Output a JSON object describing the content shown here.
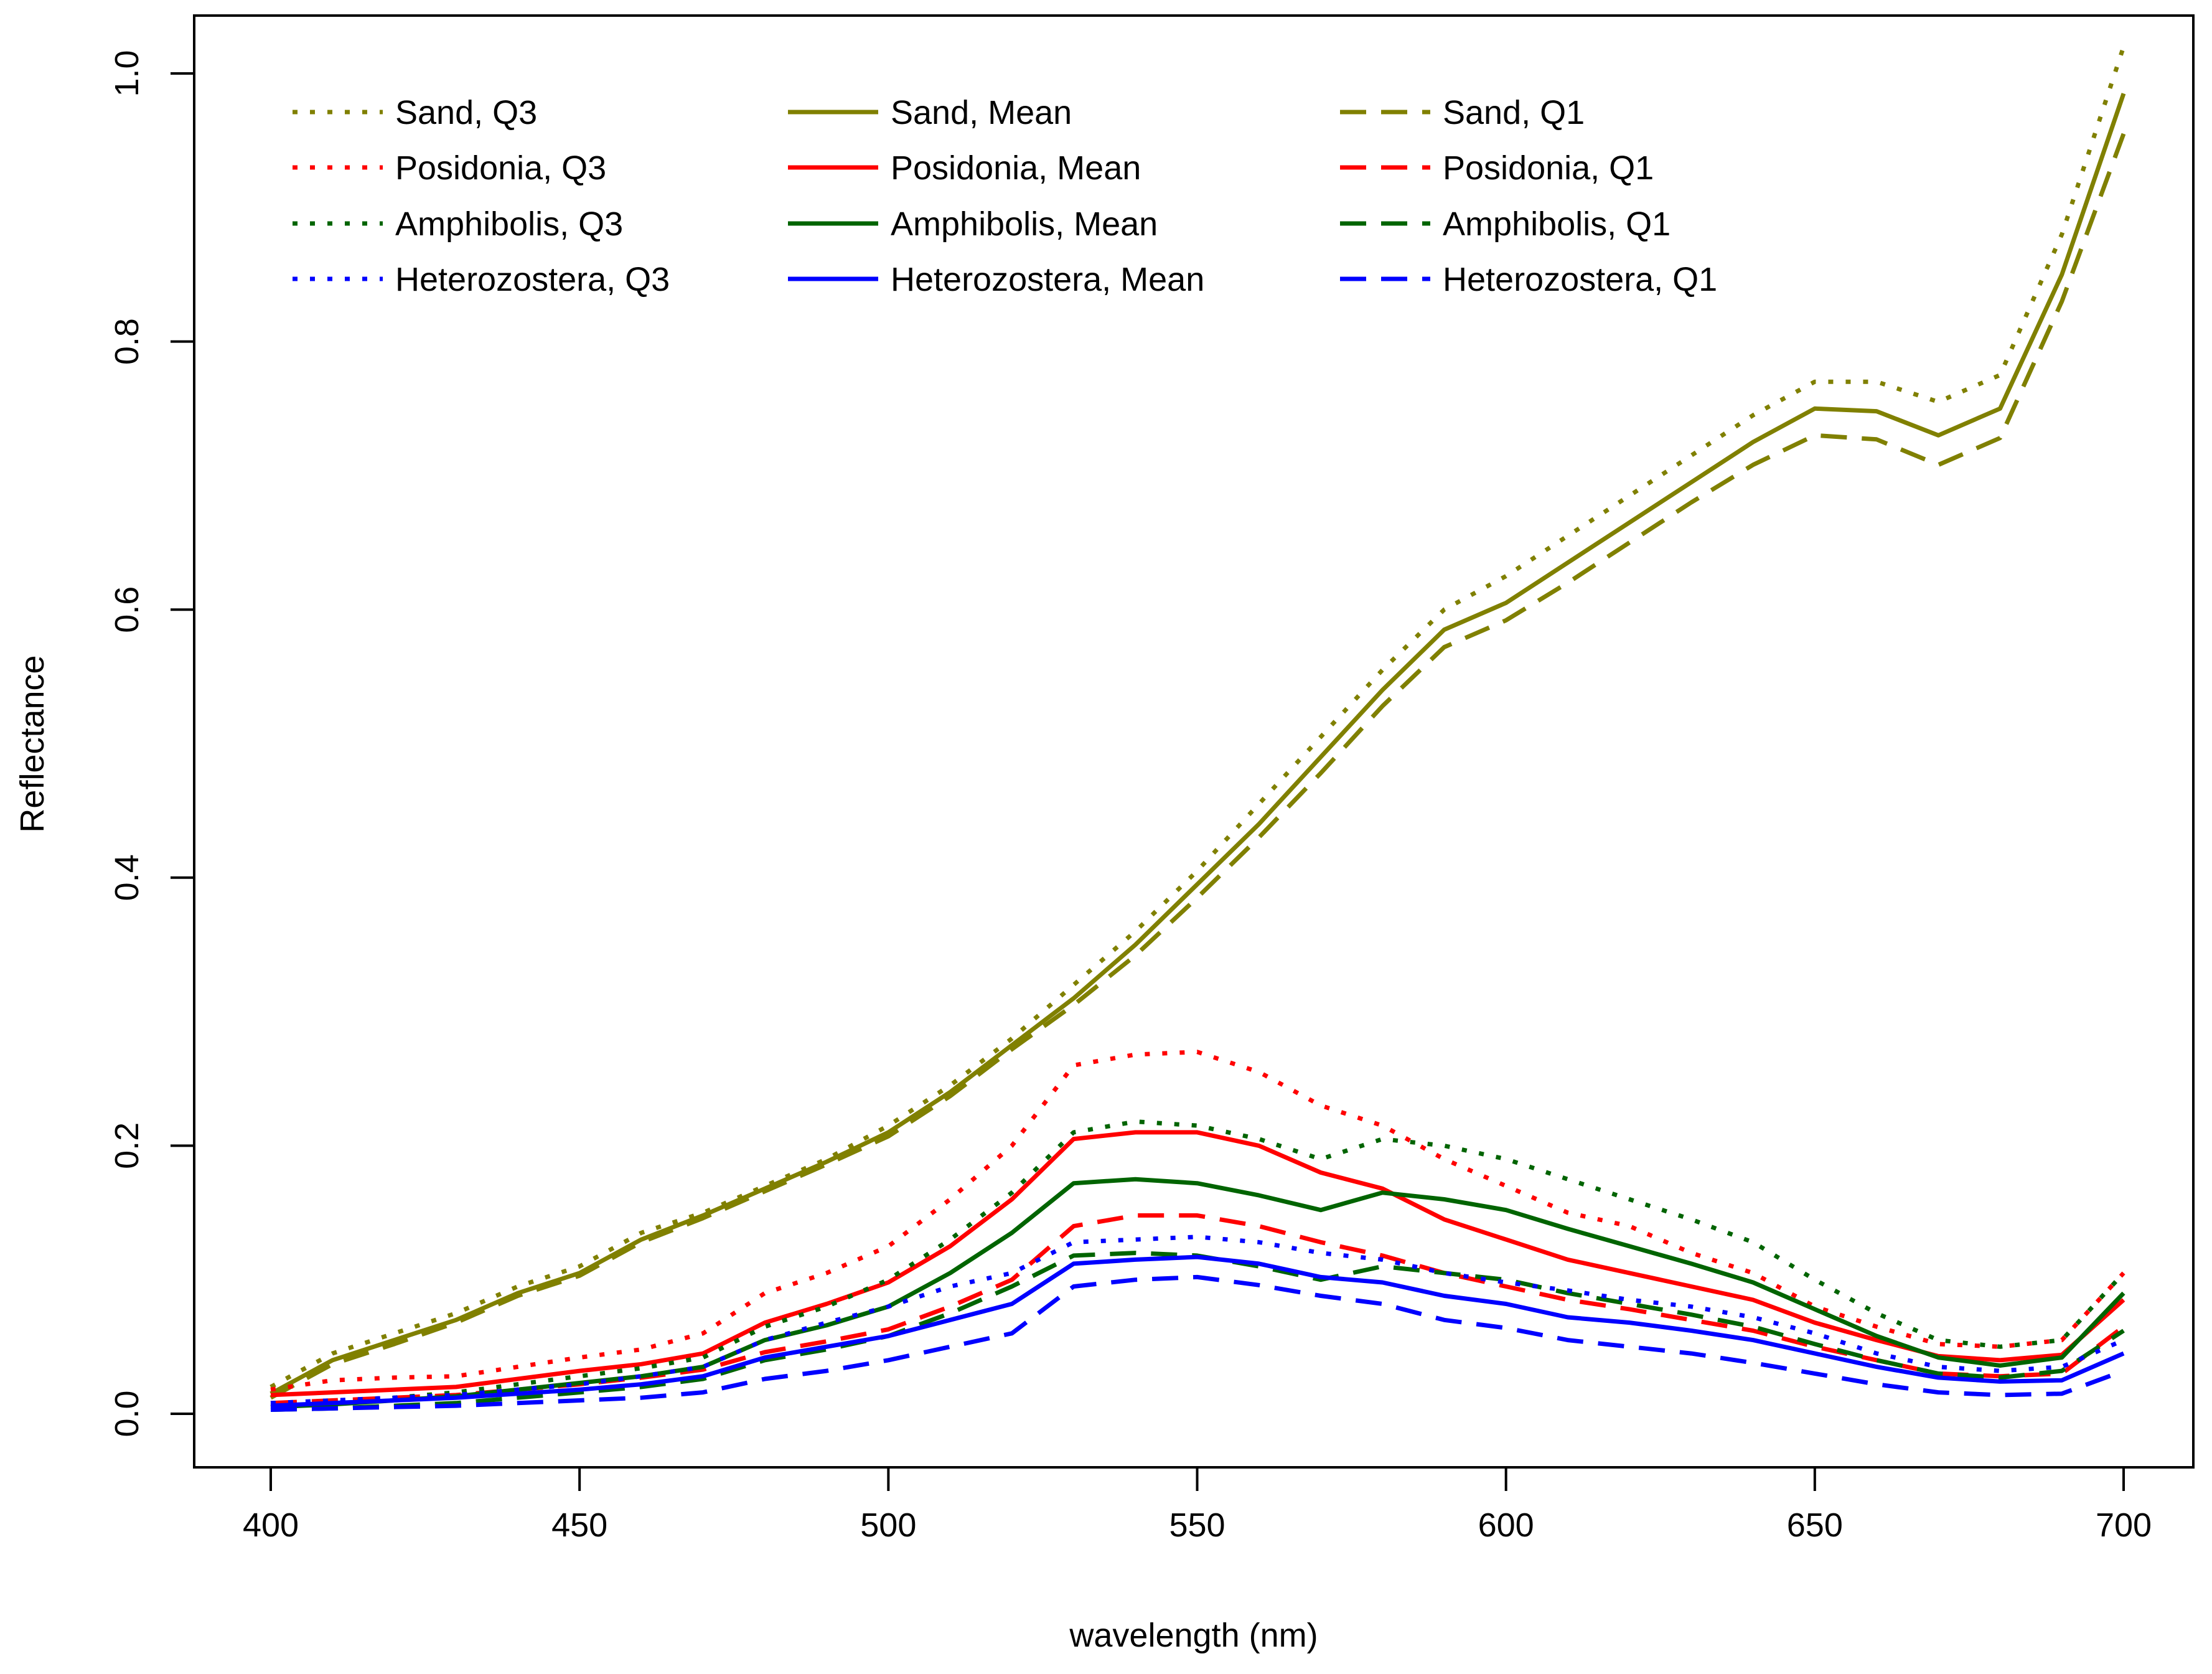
{
  "chart_data": {
    "type": "line",
    "title": "",
    "xlabel": "wavelength (nm)",
    "ylabel": "Reflectance",
    "xlim": [
      400,
      700
    ],
    "ylim": [
      0,
      1.0
    ],
    "x_ticks": [
      400,
      450,
      500,
      550,
      600,
      650,
      700
    ],
    "x_tick_labels": [
      "400",
      "450",
      "500",
      "550",
      "600",
      "650",
      "700"
    ],
    "y_ticks": [
      0,
      0.2,
      0.4,
      0.6,
      0.8,
      1.0
    ],
    "y_tick_labels": [
      "0.0",
      "0.2",
      "0.4",
      "0.6",
      "0.8",
      "1.0"
    ],
    "grid": false,
    "legend_position": "top",
    "x": [
      400,
      410,
      420,
      430,
      440,
      450,
      460,
      470,
      480,
      490,
      500,
      510,
      520,
      530,
      540,
      550,
      560,
      570,
      580,
      590,
      600,
      610,
      620,
      630,
      640,
      650,
      660,
      670,
      680,
      690,
      700
    ],
    "series": [
      {
        "name": "Sand, Q3",
        "color": "#808000",
        "style": "dotted",
        "values": [
          0.02,
          0.045,
          0.06,
          0.075,
          0.095,
          0.11,
          0.135,
          0.15,
          0.17,
          0.19,
          0.215,
          0.245,
          0.28,
          0.32,
          0.36,
          0.405,
          0.455,
          0.505,
          0.555,
          0.6,
          0.625,
          0.655,
          0.685,
          0.715,
          0.745,
          0.77,
          0.77,
          0.755,
          0.775,
          0.88,
          1.02
        ]
      },
      {
        "name": "Sand, Mean",
        "color": "#808000",
        "style": "solid",
        "values": [
          0.015,
          0.04,
          0.055,
          0.07,
          0.09,
          0.105,
          0.13,
          0.148,
          0.168,
          0.188,
          0.21,
          0.24,
          0.275,
          0.31,
          0.35,
          0.395,
          0.44,
          0.49,
          0.54,
          0.585,
          0.605,
          0.635,
          0.665,
          0.695,
          0.725,
          0.75,
          0.748,
          0.73,
          0.75,
          0.85,
          0.985
        ]
      },
      {
        "name": "Sand, Q1",
        "color": "#808000",
        "style": "dashed",
        "values": [
          0.012,
          0.037,
          0.052,
          0.068,
          0.088,
          0.103,
          0.128,
          0.146,
          0.166,
          0.186,
          0.207,
          0.237,
          0.272,
          0.305,
          0.342,
          0.385,
          0.43,
          0.478,
          0.528,
          0.572,
          0.592,
          0.62,
          0.65,
          0.68,
          0.708,
          0.73,
          0.727,
          0.708,
          0.728,
          0.83,
          0.955
        ]
      },
      {
        "name": "Posidonia, Q3",
        "color": "#ff0000",
        "style": "dotted",
        "values": [
          0.018,
          0.025,
          0.027,
          0.028,
          0.035,
          0.042,
          0.048,
          0.06,
          0.09,
          0.105,
          0.125,
          0.16,
          0.2,
          0.26,
          0.268,
          0.27,
          0.255,
          0.23,
          0.215,
          0.19,
          0.17,
          0.15,
          0.14,
          0.12,
          0.105,
          0.08,
          0.065,
          0.052,
          0.05,
          0.055,
          0.105
        ]
      },
      {
        "name": "Posidonia, Mean",
        "color": "#ff0000",
        "style": "solid",
        "values": [
          0.014,
          0.016,
          0.018,
          0.02,
          0.026,
          0.032,
          0.037,
          0.045,
          0.068,
          0.082,
          0.098,
          0.125,
          0.16,
          0.205,
          0.21,
          0.21,
          0.2,
          0.18,
          0.168,
          0.145,
          0.13,
          0.115,
          0.105,
          0.095,
          0.085,
          0.068,
          0.055,
          0.043,
          0.04,
          0.044,
          0.085
        ]
      },
      {
        "name": "Posidonia, Q1",
        "color": "#ff0000",
        "style": "dashed",
        "values": [
          0.008,
          0.01,
          0.012,
          0.014,
          0.018,
          0.022,
          0.027,
          0.033,
          0.046,
          0.054,
          0.063,
          0.08,
          0.1,
          0.14,
          0.148,
          0.148,
          0.14,
          0.128,
          0.118,
          0.105,
          0.095,
          0.085,
          0.078,
          0.07,
          0.062,
          0.05,
          0.04,
          0.03,
          0.028,
          0.03,
          0.065
        ]
      },
      {
        "name": "Amphibolis, Q3",
        "color": "#006400",
        "style": "dotted",
        "values": [
          0.005,
          0.008,
          0.012,
          0.016,
          0.022,
          0.028,
          0.034,
          0.042,
          0.065,
          0.08,
          0.1,
          0.13,
          0.165,
          0.21,
          0.218,
          0.215,
          0.205,
          0.19,
          0.205,
          0.2,
          0.19,
          0.175,
          0.16,
          0.145,
          0.128,
          0.1,
          0.075,
          0.055,
          0.05,
          0.055,
          0.105
        ]
      },
      {
        "name": "Amphibolis, Mean",
        "color": "#006400",
        "style": "solid",
        "values": [
          0.005,
          0.007,
          0.01,
          0.013,
          0.018,
          0.023,
          0.028,
          0.035,
          0.055,
          0.066,
          0.08,
          0.105,
          0.135,
          0.172,
          0.175,
          0.172,
          0.163,
          0.152,
          0.165,
          0.16,
          0.152,
          0.138,
          0.125,
          0.112,
          0.098,
          0.078,
          0.058,
          0.042,
          0.036,
          0.042,
          0.09
        ]
      },
      {
        "name": "Amphibolis, Q1",
        "color": "#006400",
        "style": "dashed",
        "values": [
          0.003,
          0.004,
          0.006,
          0.008,
          0.012,
          0.016,
          0.02,
          0.026,
          0.04,
          0.048,
          0.058,
          0.075,
          0.095,
          0.118,
          0.12,
          0.118,
          0.11,
          0.1,
          0.11,
          0.105,
          0.1,
          0.09,
          0.082,
          0.074,
          0.065,
          0.052,
          0.04,
          0.03,
          0.027,
          0.032,
          0.062
        ]
      },
      {
        "name": "Heterozostera, Q3",
        "color": "#0000ff",
        "style": "dotted",
        "values": [
          0.008,
          0.01,
          0.012,
          0.014,
          0.018,
          0.022,
          0.028,
          0.035,
          0.055,
          0.068,
          0.08,
          0.095,
          0.105,
          0.128,
          0.13,
          0.132,
          0.128,
          0.12,
          0.115,
          0.105,
          0.098,
          0.092,
          0.085,
          0.08,
          0.072,
          0.06,
          0.045,
          0.035,
          0.032,
          0.035,
          0.055
        ]
      },
      {
        "name": "Heterozostera, Mean",
        "color": "#0000ff",
        "style": "solid",
        "values": [
          0.006,
          0.008,
          0.01,
          0.012,
          0.015,
          0.018,
          0.022,
          0.028,
          0.042,
          0.05,
          0.058,
          0.07,
          0.082,
          0.112,
          0.115,
          0.117,
          0.112,
          0.102,
          0.098,
          0.088,
          0.082,
          0.072,
          0.068,
          0.062,
          0.055,
          0.045,
          0.035,
          0.027,
          0.024,
          0.025,
          0.045
        ]
      },
      {
        "name": "Heterozostera, Q1",
        "color": "#0000ff",
        "style": "dashed",
        "values": [
          0.003,
          0.004,
          0.005,
          0.006,
          0.008,
          0.01,
          0.012,
          0.016,
          0.026,
          0.032,
          0.04,
          0.05,
          0.06,
          0.095,
          0.1,
          0.102,
          0.096,
          0.088,
          0.082,
          0.07,
          0.064,
          0.055,
          0.05,
          0.045,
          0.038,
          0.03,
          0.022,
          0.016,
          0.014,
          0.015,
          0.032
        ]
      }
    ]
  }
}
